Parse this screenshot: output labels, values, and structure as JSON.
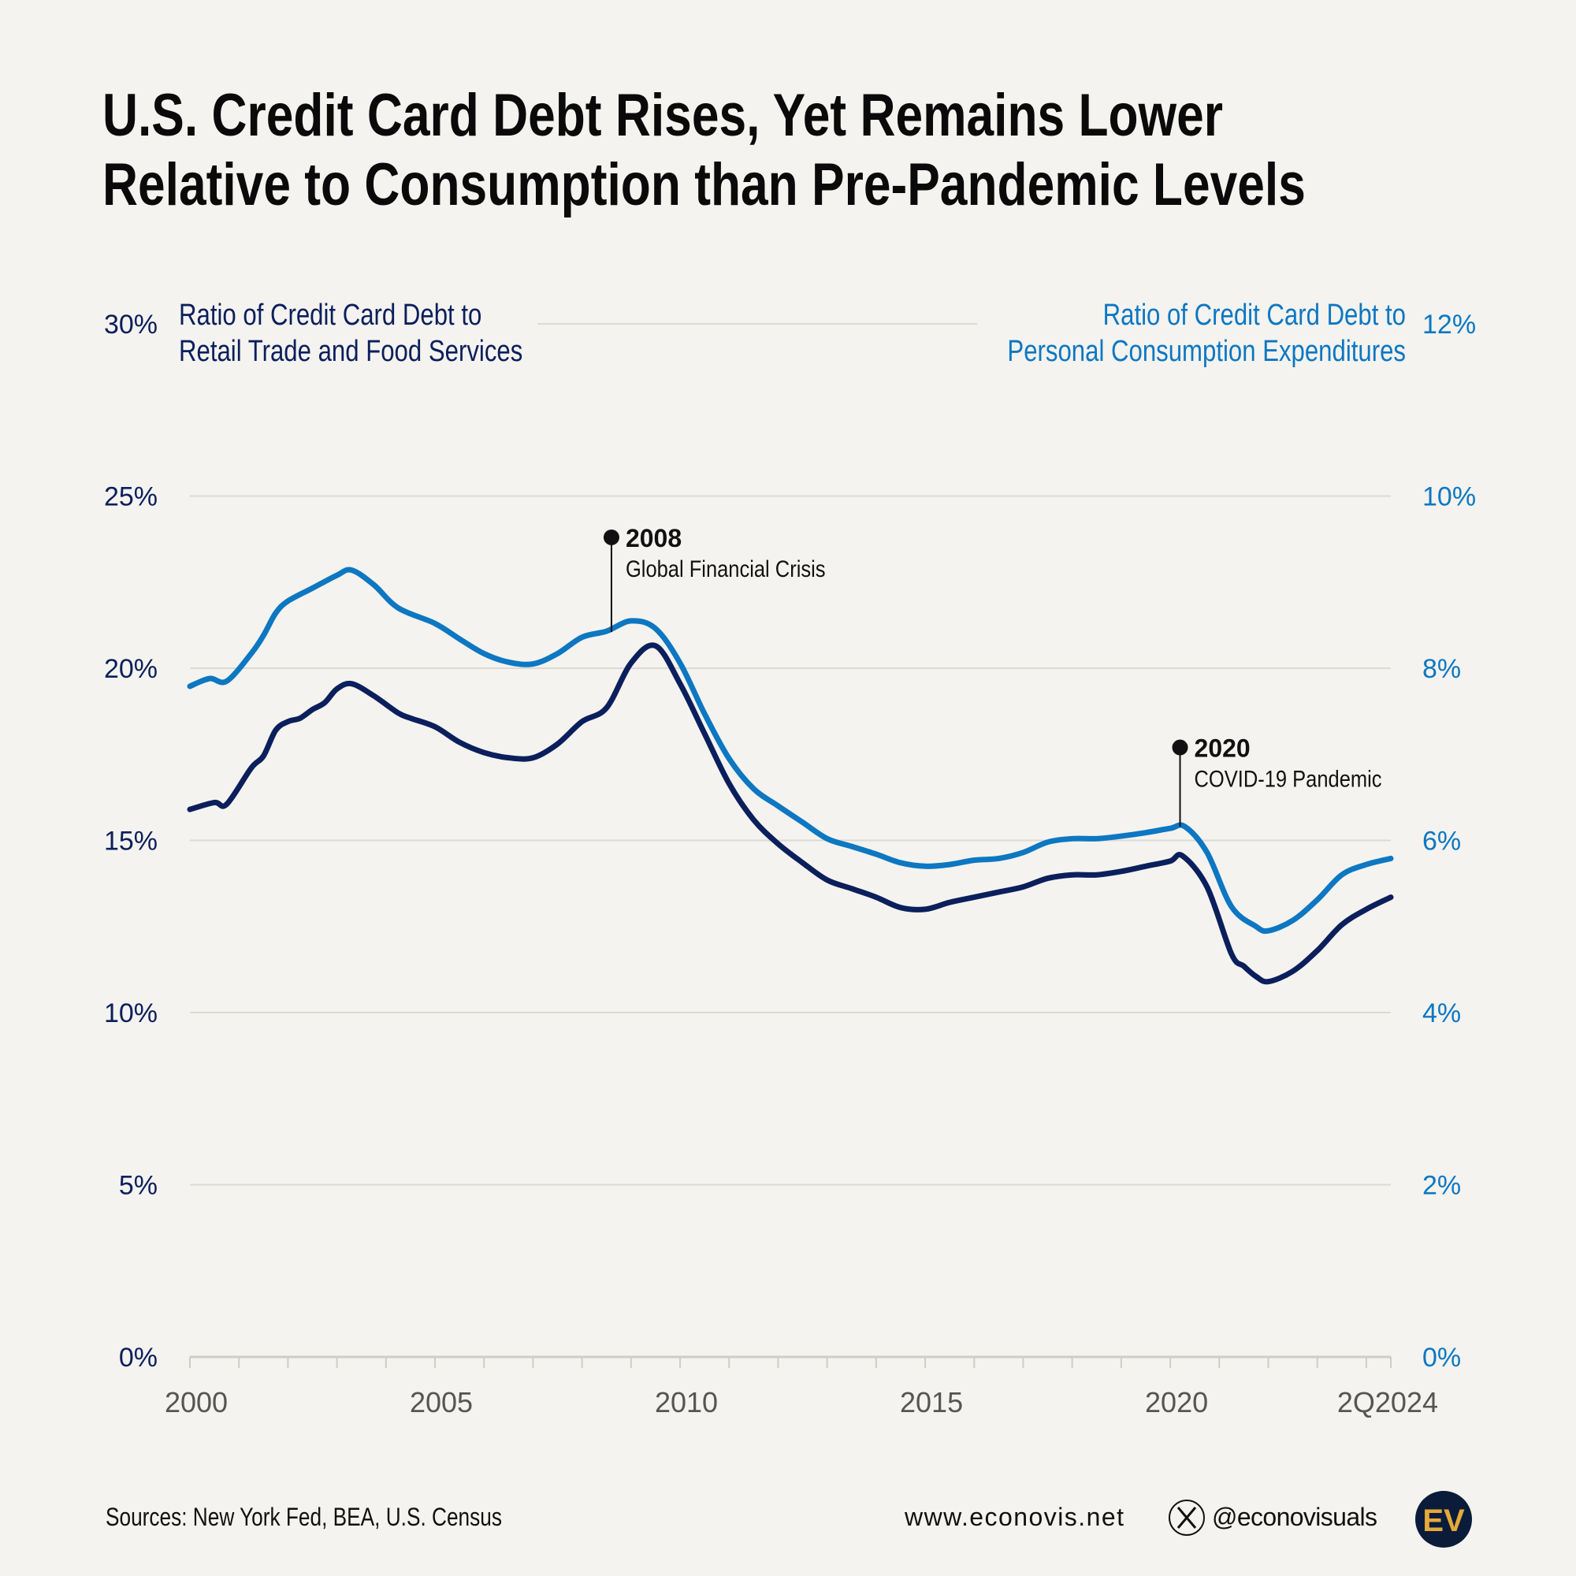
{
  "title": {
    "line1": "U.S. Credit Card Debt Rises, Yet Remains Lower",
    "line2": "Relative to Consumption than Pre-Pandemic Levels"
  },
  "chart_data": {
    "type": "line",
    "title": "U.S. Credit Card Debt Rises, Yet Remains Lower Relative to Consumption than Pre-Pandemic Levels",
    "x_range": [
      2000,
      2024.5
    ],
    "x_ticks": [
      {
        "v": 2000,
        "label": "2000"
      },
      {
        "v": 2005,
        "label": "2005"
      },
      {
        "v": 2010,
        "label": "2010"
      },
      {
        "v": 2015,
        "label": "2015"
      },
      {
        "v": 2020,
        "label": "2020"
      },
      {
        "v": 2024.5,
        "label": "2Q2024"
      }
    ],
    "y_left": {
      "range": [
        0,
        30
      ],
      "ticks": [
        "0%",
        "5%",
        "10%",
        "15%",
        "20%",
        "25%",
        "30%"
      ],
      "color": "#0b1f5c"
    },
    "y_right": {
      "range": [
        0,
        12
      ],
      "ticks": [
        "0%",
        "2%",
        "4%",
        "6%",
        "8%",
        "10%",
        "12%"
      ],
      "color": "#0d77c2"
    },
    "grid": true,
    "series": [
      {
        "name": "Ratio of Credit Card Debt to Retail Trade and Food Services",
        "name_lines": [
          "Ratio of Credit Card Debt to",
          "Retail Trade and Food Services"
        ],
        "axis": "left",
        "color": "#0b1f5c",
        "x": [
          2000,
          2000.5,
          2000.75,
          2001.25,
          2001.5,
          2001.75,
          2002,
          2002.25,
          2002.5,
          2002.75,
          2003,
          2003.3,
          2003.75,
          2004.25,
          2004.5,
          2005,
          2005.5,
          2006,
          2006.5,
          2007,
          2007.5,
          2008,
          2008.5,
          2009,
          2009.5,
          2010,
          2010.5,
          2011,
          2011.5,
          2012,
          2012.5,
          2013,
          2013.5,
          2014,
          2014.5,
          2015,
          2015.5,
          2016,
          2016.5,
          2017,
          2017.5,
          2018,
          2018.5,
          2019,
          2019.5,
          2020,
          2020.25,
          2020.75,
          2021.25,
          2021.5,
          2021.75,
          2022,
          2022.5,
          2023,
          2023.5,
          2024,
          2024.5
        ],
        "y": [
          15.9,
          16.1,
          16.05,
          17.1,
          17.45,
          18.2,
          18.45,
          18.55,
          18.8,
          19.0,
          19.4,
          19.55,
          19.2,
          18.7,
          18.55,
          18.3,
          17.85,
          17.55,
          17.4,
          17.4,
          17.8,
          18.45,
          18.85,
          20.15,
          20.65,
          19.55,
          18.1,
          16.65,
          15.6,
          14.9,
          14.35,
          13.85,
          13.6,
          13.35,
          13.05,
          13.0,
          13.2,
          13.35,
          13.5,
          13.65,
          13.9,
          14.0,
          14.0,
          14.1,
          14.25,
          14.4,
          14.55,
          13.65,
          11.7,
          11.35,
          11.05,
          10.9,
          11.2,
          11.8,
          12.55,
          13.0,
          13.35
        ]
      },
      {
        "name": "Ratio of Credit Card Debt to Personal Consumption Expenditures",
        "name_lines": [
          "Ratio of Credit Card Debt to",
          "Personal Consumption Expenditures"
        ],
        "axis": "right",
        "color": "#0d77c2",
        "x": [
          2000,
          2000.4,
          2000.75,
          2001.25,
          2001.5,
          2001.75,
          2002,
          2002.5,
          2003,
          2003.3,
          2003.75,
          2004.25,
          2005,
          2005.5,
          2006,
          2006.5,
          2007,
          2007.5,
          2008,
          2008.5,
          2009,
          2009.5,
          2010,
          2010.5,
          2011,
          2011.5,
          2012,
          2012.5,
          2013,
          2013.5,
          2014,
          2014.5,
          2015,
          2015.5,
          2016,
          2016.5,
          2017,
          2017.5,
          2018,
          2018.5,
          2019,
          2019.5,
          2020,
          2020.3,
          2020.75,
          2021.25,
          2021.75,
          2022,
          2022.5,
          2023,
          2023.5,
          2024,
          2024.5
        ],
        "y": [
          7.79,
          7.88,
          7.85,
          8.17,
          8.38,
          8.64,
          8.78,
          8.93,
          9.08,
          9.14,
          8.97,
          8.7,
          8.52,
          8.34,
          8.17,
          8.07,
          8.05,
          8.17,
          8.36,
          8.43,
          8.55,
          8.46,
          8.06,
          7.47,
          6.95,
          6.6,
          6.4,
          6.21,
          6.02,
          5.93,
          5.84,
          5.74,
          5.7,
          5.72,
          5.77,
          5.79,
          5.86,
          5.98,
          6.02,
          6.02,
          6.05,
          6.09,
          6.14,
          6.16,
          5.86,
          5.23,
          5.0,
          4.95,
          5.07,
          5.31,
          5.6,
          5.72,
          5.79
        ]
      }
    ],
    "annotations": [
      {
        "x": 2008.6,
        "y_left": 23.8,
        "anchor_left": 21.05,
        "year": "2008",
        "text": "Global Financial Crisis"
      },
      {
        "x": 2020.2,
        "y_left": 17.7,
        "anchor_left": 15.4,
        "year": "2020",
        "text": "COVID-19 Pandemic"
      }
    ]
  },
  "footer": {
    "sources": "Sources: New York Fed, BEA, U.S. Census",
    "website": "www.econovis.net",
    "handle": "@econovisuals",
    "social_icon": "x-logo-icon",
    "logo_text": "EV",
    "logo_colors": {
      "bg": "#0b1b3a",
      "fg": "#e5a93a"
    }
  }
}
